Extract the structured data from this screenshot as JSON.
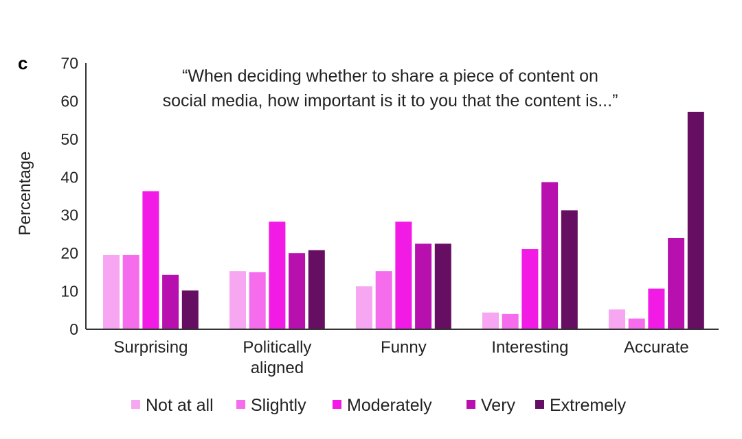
{
  "panel_label": "c",
  "chart_data": {
    "type": "bar",
    "title_lines": [
      "“When deciding whether to share a piece of content on",
      "social media, how important is it to you that the content is...”"
    ],
    "ylabel": "Percentage",
    "xlabel": "",
    "ylim": [
      0,
      70
    ],
    "yticks": [
      0,
      10,
      20,
      30,
      40,
      50,
      60,
      70
    ],
    "grid": false,
    "legend_position": "bottom",
    "categories": [
      [
        "Surprising"
      ],
      [
        "Politically",
        "aligned"
      ],
      [
        "Funny"
      ],
      [
        "Interesting"
      ],
      [
        "Accurate"
      ]
    ],
    "series": [
      {
        "name": "Not at all",
        "color": "#f7a6f1",
        "values": [
          19.5,
          15.3,
          11.3,
          4.4,
          5.2
        ]
      },
      {
        "name": "Slightly",
        "color": "#f56cec",
        "values": [
          19.5,
          15.0,
          15.3,
          4.0,
          2.8
        ]
      },
      {
        "name": "Moderately",
        "color": "#f21be6",
        "values": [
          36.3,
          28.3,
          28.3,
          21.1,
          10.7
        ]
      },
      {
        "name": "Very",
        "color": "#b80faf",
        "values": [
          14.3,
          20.0,
          22.5,
          38.7,
          24.0
        ]
      },
      {
        "name": "Extremely",
        "color": "#650e62",
        "values": [
          10.2,
          20.8,
          22.5,
          31.3,
          57.2
        ]
      }
    ]
  }
}
